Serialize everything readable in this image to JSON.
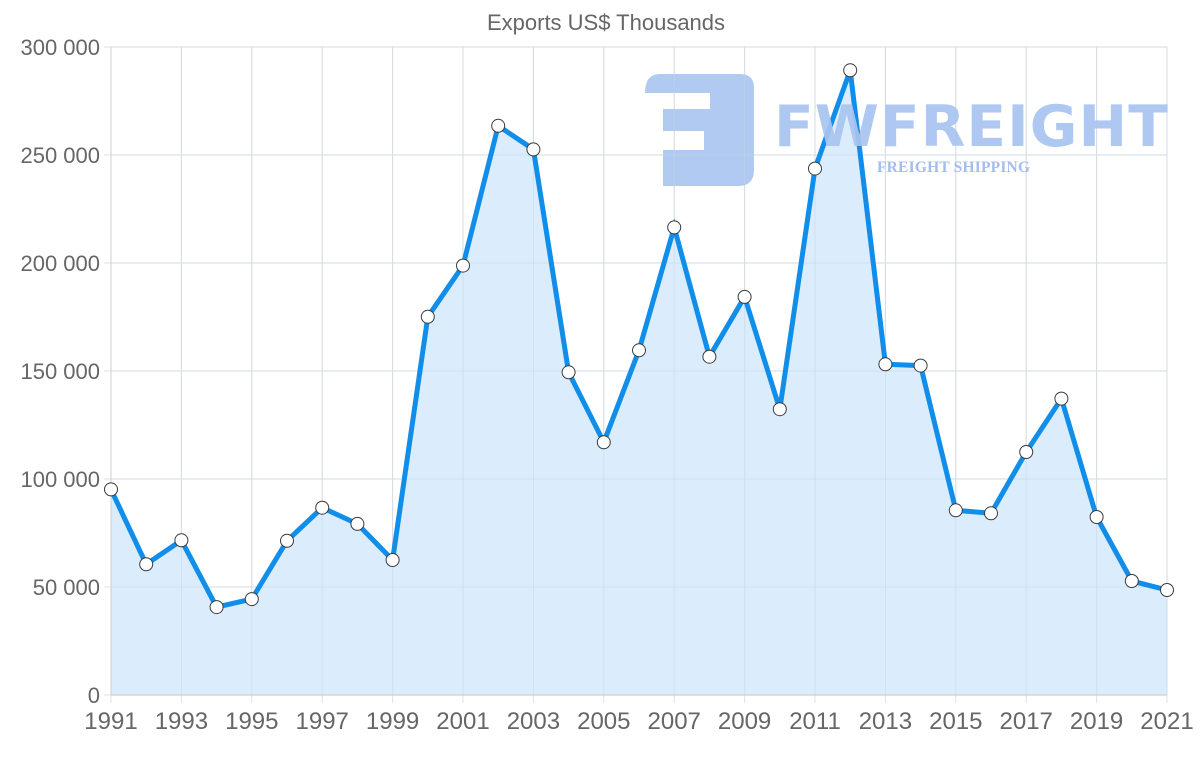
{
  "logo": {
    "wordmark": "FWFREIGHT",
    "tagline": "FREIGHT SHIPPING",
    "color": "#a9c4f0"
  },
  "colors": {
    "line": "#108ee9",
    "fill": "#d9ebfc",
    "grid": "#e1e1e1",
    "axis": "#cfcfcf",
    "text": "#666666",
    "marker_fill": "#ffffff",
    "marker_stroke": "#3a3a3a"
  },
  "chart_data": {
    "type": "line",
    "title": "Exports US$ Thousands",
    "xlabel": "",
    "ylabel": "",
    "x": [
      1991,
      1992,
      1993,
      1994,
      1995,
      1996,
      1997,
      1998,
      1999,
      2000,
      2001,
      2002,
      2003,
      2004,
      2005,
      2006,
      2007,
      2008,
      2009,
      2010,
      2011,
      2012,
      2013,
      2014,
      2015,
      2016,
      2017,
      2018,
      2019,
      2020,
      2021
    ],
    "series": [
      {
        "name": "Exports US$ Thousands",
        "values": [
          95200,
          60500,
          71600,
          40700,
          44400,
          71400,
          86700,
          79200,
          62500,
          175100,
          198800,
          263500,
          252600,
          149400,
          117000,
          159600,
          216500,
          156600,
          184300,
          132300,
          243700,
          289200,
          153100,
          152500,
          85500,
          84100,
          112500,
          137200,
          82400,
          52800,
          48600
        ]
      }
    ],
    "xlim": [
      1991,
      2021
    ],
    "ylim": [
      0,
      300000
    ],
    "x_ticks": [
      "1991",
      "1993",
      "1995",
      "1997",
      "1999",
      "2001",
      "2003",
      "2005",
      "2007",
      "2009",
      "2011",
      "2013",
      "2015",
      "2017",
      "2019",
      "2021"
    ],
    "y_ticks": [
      {
        "value": 0,
        "label": "0"
      },
      {
        "value": 50000,
        "label": "50 000"
      },
      {
        "value": 100000,
        "label": "100 000"
      },
      {
        "value": 150000,
        "label": "150 000"
      },
      {
        "value": 200000,
        "label": "200 000"
      },
      {
        "value": 250000,
        "label": "250 000"
      },
      {
        "value": 300000,
        "label": "300 000"
      }
    ],
    "grid": true,
    "area_fill": true,
    "markers": true,
    "legend": "none"
  }
}
